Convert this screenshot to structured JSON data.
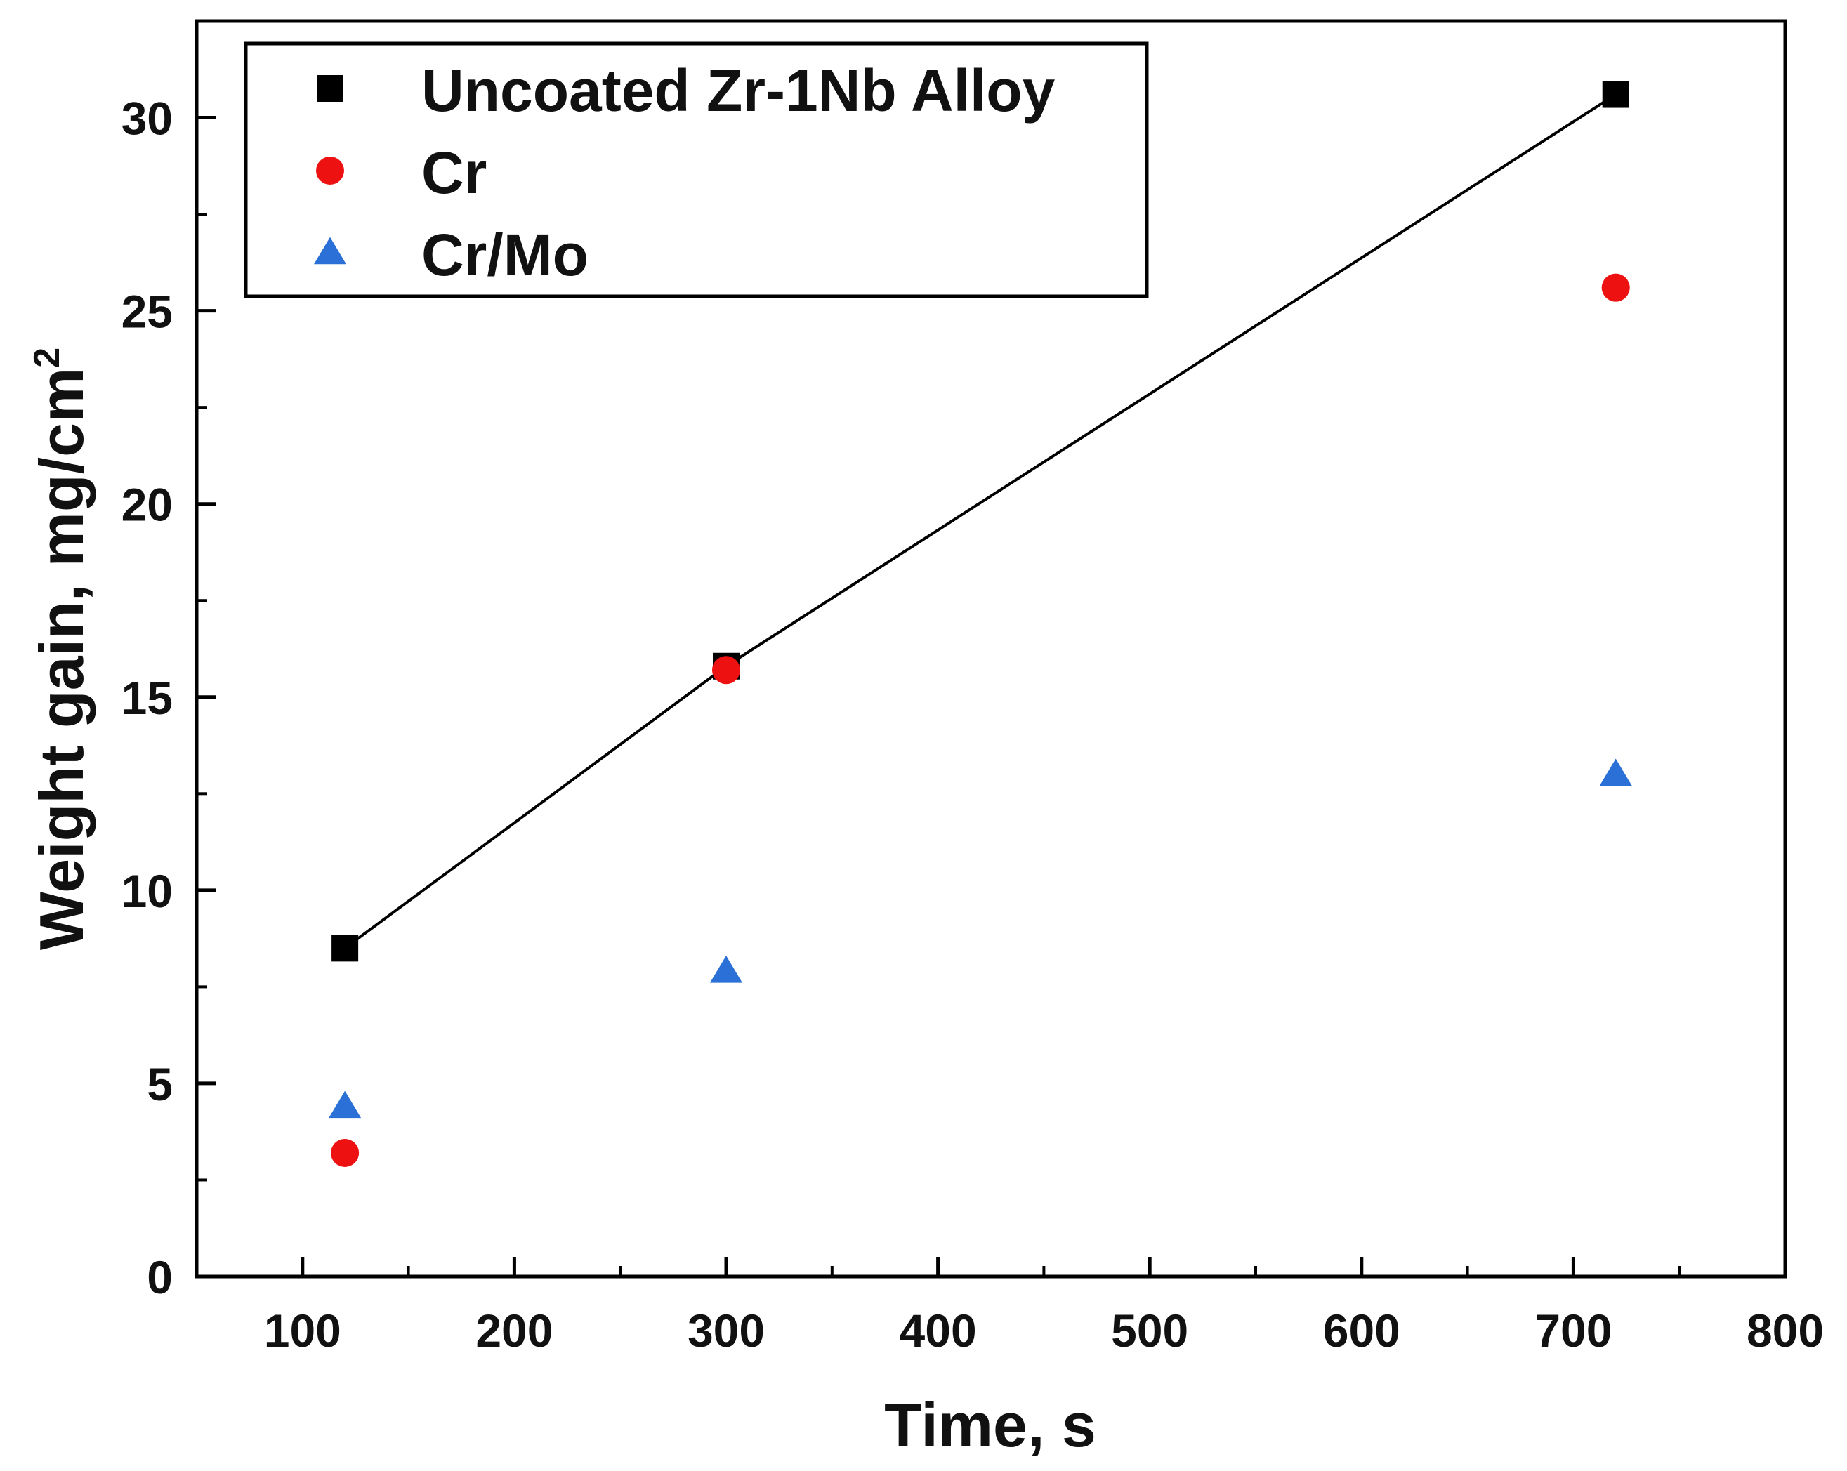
{
  "chart_data": {
    "type": "scatter",
    "title": "",
    "xlabel": "Time, s",
    "ylabel": {
      "text": "Weight gain, mg/cm",
      "superscript": "2"
    },
    "xlim": [
      50,
      800
    ],
    "ylim": [
      0,
      32.5
    ],
    "x_ticks": [
      100,
      200,
      300,
      400,
      500,
      600,
      700,
      800
    ],
    "x_tick_labels": [
      "100",
      "200",
      "300",
      "400",
      "500",
      "600",
      "700",
      "800"
    ],
    "x_minor_ticks": [
      150,
      250,
      350,
      450,
      550,
      650,
      750
    ],
    "y_ticks": [
      0,
      5,
      10,
      15,
      20,
      25,
      30
    ],
    "y_tick_labels": [
      "0",
      "5",
      "10",
      "15",
      "20",
      "25",
      "30"
    ],
    "y_minor_ticks": [
      2.5,
      7.5,
      12.5,
      17.5,
      22.5,
      27.5
    ],
    "grid": false,
    "legend_position": "top-left",
    "series": [
      {
        "name": "Uncoated Zr-1Nb Alloy",
        "marker": "square",
        "color": "#000000",
        "x": [
          120,
          300,
          720
        ],
        "y": [
          8.5,
          15.8,
          30.6
        ],
        "fit_line": true
      },
      {
        "name": "Cr",
        "marker": "circle",
        "color": "#ee1111",
        "x": [
          120,
          300,
          720
        ],
        "y": [
          3.2,
          15.7,
          25.6
        ],
        "fit_line": false
      },
      {
        "name": "Cr/Mo",
        "marker": "triangle",
        "color": "#2a70d6",
        "x": [
          120,
          300,
          720
        ],
        "y": [
          4.4,
          7.9,
          13.0
        ],
        "fit_line": false
      }
    ]
  }
}
